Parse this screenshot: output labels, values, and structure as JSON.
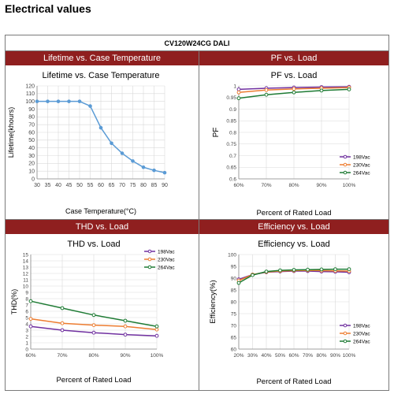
{
  "page": {
    "section_title": "Electrical values",
    "model": "CV120W24CG DALI"
  },
  "colors": {
    "header_bg": "#8f1f1f",
    "blue": "#5b9bd5",
    "purple": "#7030a0",
    "orange": "#ed7d31",
    "green": "#1e7b34"
  },
  "chart_data": [
    {
      "id": "lifetime",
      "type": "line",
      "header": "Lifetime vs. Case Temperature",
      "title": "Lifetime vs. Case Temperature",
      "xlabel": "Case Temperature(°C)",
      "ylabel": "Lifetime(khours)",
      "xlim": [
        30,
        90
      ],
      "ylim": [
        0,
        120
      ],
      "xticks": [
        "30",
        "35",
        "40",
        "45",
        "50",
        "55",
        "60",
        "65",
        "70",
        "75",
        "80",
        "85",
        "90"
      ],
      "yticks": [
        "0",
        "10",
        "20",
        "30",
        "40",
        "50",
        "60",
        "70",
        "80",
        "90",
        "100",
        "110",
        "120"
      ],
      "grid": true,
      "x": [
        30,
        35,
        40,
        45,
        50,
        55,
        60,
        65,
        70,
        75,
        80,
        85,
        90
      ],
      "series": [
        {
          "values": [
            100,
            100,
            100,
            100,
            100,
            94,
            66,
            46,
            33,
            23,
            15,
            11,
            8
          ]
        }
      ]
    },
    {
      "id": "pf",
      "type": "line",
      "header": "PF vs. Load",
      "title": "PF vs. Load",
      "xlabel": "Percent of Rated Load",
      "ylabel": "PF",
      "xlim": [
        60,
        100
      ],
      "ylim": [
        0.6,
        1
      ],
      "xticks": [
        "60%",
        "70%",
        "80%",
        "90%",
        "100%"
      ],
      "yticks": [
        "0.6",
        "0.65",
        "0.7",
        "0.75",
        "0.8",
        "0.85",
        "0.9",
        "0.95",
        "1"
      ],
      "grid": true,
      "legend": "bottom-right",
      "x": [
        60,
        70,
        80,
        90,
        100
      ],
      "series": [
        {
          "name": "198Vac",
          "values": [
            0.985,
            0.99,
            0.993,
            0.995,
            0.996
          ]
        },
        {
          "name": "230Vac",
          "values": [
            0.972,
            0.982,
            0.987,
            0.99,
            0.993
          ]
        },
        {
          "name": "264Vac",
          "values": [
            0.947,
            0.962,
            0.972,
            0.98,
            0.985
          ]
        }
      ]
    },
    {
      "id": "thd",
      "type": "line",
      "header": "THD vs. Load",
      "title": "THD vs. Load",
      "xlabel": "Percent of Rated Load",
      "ylabel": "THD(%)",
      "xlim": [
        60,
        100
      ],
      "ylim": [
        0,
        15
      ],
      "xticks": [
        "60%",
        "70%",
        "80%",
        "90%",
        "100%"
      ],
      "yticks": [
        "0",
        "1",
        "2",
        "3",
        "4",
        "5",
        "6",
        "7",
        "8",
        "9",
        "10",
        "11",
        "12",
        "13",
        "14",
        "15"
      ],
      "grid": true,
      "legend": "top-right",
      "x": [
        60,
        70,
        80,
        90,
        100
      ],
      "series": [
        {
          "name": "198Vac",
          "values": [
            3.6,
            3.0,
            2.6,
            2.3,
            2.1
          ]
        },
        {
          "name": "230Vac",
          "values": [
            4.8,
            4.1,
            3.8,
            3.6,
            3.1
          ]
        },
        {
          "name": "264Vac",
          "values": [
            7.6,
            6.5,
            5.4,
            4.5,
            3.6
          ]
        }
      ]
    },
    {
      "id": "efficiency",
      "type": "line",
      "header": "Efficiency vs. Load",
      "title": "Efficiency vs. Load",
      "xlabel": "Percent of Rated Load",
      "ylabel": "Efficiency(%)",
      "xlim": [
        20,
        100
      ],
      "ylim": [
        60,
        100
      ],
      "xticks": [
        "20%",
        "30%",
        "40%",
        "50%",
        "60%",
        "70%",
        "80%",
        "90%",
        "100%"
      ],
      "yticks": [
        "60",
        "65",
        "70",
        "75",
        "80",
        "85",
        "90",
        "95",
        "100"
      ],
      "grid": true,
      "legend": "bottom-right",
      "x": [
        20,
        30,
        40,
        50,
        60,
        70,
        80,
        90,
        100
      ],
      "series": [
        {
          "name": "198Vac",
          "values": [
            89.5,
            91.5,
            92.5,
            92.8,
            93.0,
            93.0,
            92.8,
            92.7,
            92.5
          ]
        },
        {
          "name": "230Vac",
          "values": [
            89.0,
            91.5,
            92.6,
            93.0,
            93.2,
            93.3,
            93.2,
            93.1,
            93.0
          ]
        },
        {
          "name": "264Vac",
          "values": [
            88.0,
            91.3,
            92.8,
            93.3,
            93.5,
            93.6,
            93.7,
            93.8,
            93.8
          ]
        }
      ]
    }
  ]
}
